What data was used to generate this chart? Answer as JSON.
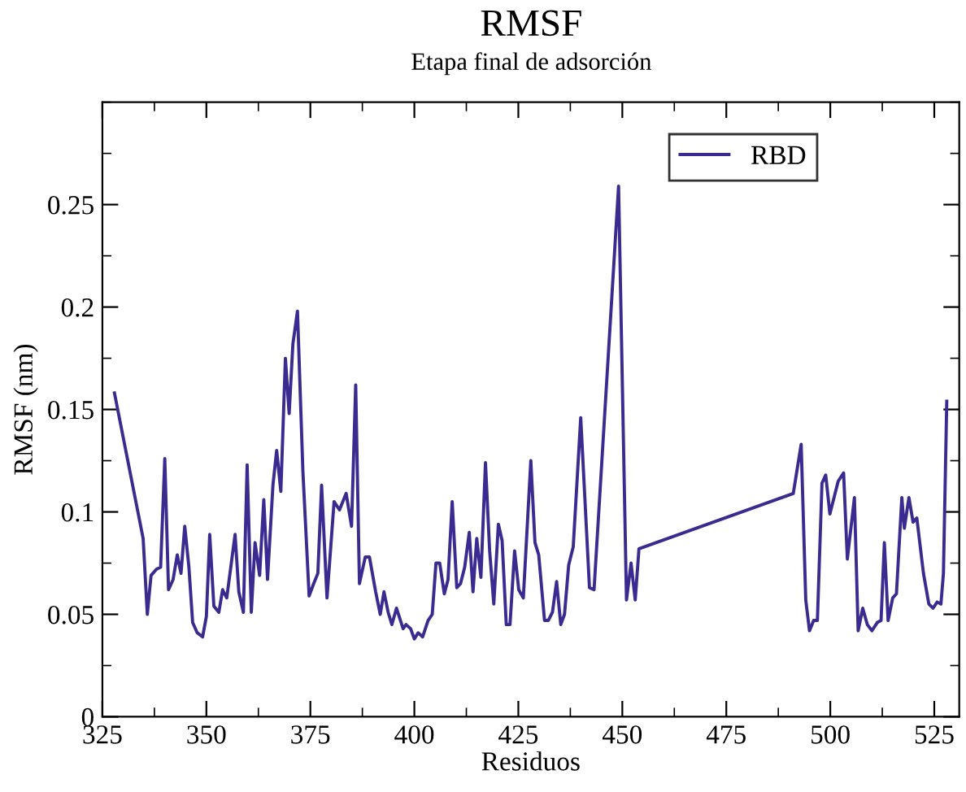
{
  "chart_data": {
    "type": "line",
    "title": "RMSF",
    "subtitle": "Etapa final de adsorción",
    "xlabel": "Residuos",
    "ylabel": "RMSF (nm)",
    "xlim": [
      325,
      531
    ],
    "xticks": [
      325,
      350,
      375,
      400,
      425,
      450,
      475,
      500,
      525
    ],
    "ylim": [
      0,
      0.3
    ],
    "yticks": [
      0,
      0.05,
      0.1,
      0.15,
      0.2,
      0.25
    ],
    "grid": false,
    "legend": "top right",
    "marker": "none",
    "line_style": "solid",
    "series": [
      {
        "name": "RBD",
        "color": "#3b2a8f",
        "x": [
          327.9,
          334.8,
          335.8,
          336.7,
          338,
          339,
          340,
          340.9,
          342,
          343,
          343.9,
          344.8,
          345.8,
          346.7,
          347.8,
          349.1,
          350,
          350.8,
          351.8,
          353,
          353.9,
          354.9,
          356.9,
          357.8,
          358.9,
          359.8,
          360.8,
          361.7,
          362.8,
          363.8,
          364.7,
          366,
          366.9,
          367.9,
          369,
          369.9,
          370.8,
          371.9,
          373.2,
          374.7,
          375.8,
          376.8,
          377.7,
          379,
          380.7,
          382,
          383.6,
          384.9,
          385.9,
          386.8,
          388.2,
          389.2,
          390.7,
          391.8,
          392.7,
          393.7,
          394.6,
          395.7,
          397.3,
          398,
          399.1,
          400,
          400.9,
          402,
          403.3,
          404.3,
          405.2,
          406.1,
          407.2,
          408.1,
          409.1,
          410.2,
          411.1,
          412.1,
          413.2,
          414.1,
          415,
          416,
          417.1,
          418.1,
          419.1,
          420.2,
          421.1,
          422.1,
          423,
          424.1,
          425.1,
          426.2,
          428,
          429,
          429.9,
          431.3,
          432.2,
          433.2,
          434.2,
          435.2,
          436.1,
          437.1,
          438.2,
          440,
          442.1,
          443.2,
          449.1,
          451,
          452.1,
          453.1,
          454,
          491.1,
          493,
          494.1,
          495,
          496,
          496.9,
          498,
          498.9,
          499.9,
          501.9,
          503.2,
          504.1,
          505.8,
          506.7,
          507.8,
          508.9,
          510,
          511.3,
          512.2,
          513,
          513.9,
          515,
          515.9,
          517.2,
          517.8,
          518.9,
          519.9,
          520.8,
          522.4,
          523.7,
          524.7,
          525.7,
          526.6,
          527.2,
          528
        ],
        "values": [
          0.158,
          0.087,
          0.05,
          0.069,
          0.072,
          0.073,
          0.126,
          0.062,
          0.067,
          0.079,
          0.07,
          0.093,
          0.073,
          0.046,
          0.041,
          0.039,
          0.049,
          0.089,
          0.054,
          0.051,
          0.062,
          0.058,
          0.089,
          0.061,
          0.051,
          0.123,
          0.051,
          0.085,
          0.069,
          0.106,
          0.067,
          0.113,
          0.13,
          0.11,
          0.175,
          0.148,
          0.182,
          0.198,
          0.12,
          0.059,
          0.065,
          0.07,
          0.113,
          0.058,
          0.105,
          0.101,
          0.109,
          0.093,
          0.162,
          0.065,
          0.078,
          0.078,
          0.061,
          0.05,
          0.061,
          0.051,
          0.045,
          0.053,
          0.043,
          0.045,
          0.043,
          0.038,
          0.041,
          0.039,
          0.047,
          0.05,
          0.075,
          0.075,
          0.06,
          0.067,
          0.105,
          0.063,
          0.065,
          0.073,
          0.09,
          0.061,
          0.087,
          0.068,
          0.124,
          0.081,
          0.055,
          0.094,
          0.086,
          0.045,
          0.045,
          0.081,
          0.062,
          0.058,
          0.125,
          0.085,
          0.079,
          0.047,
          0.047,
          0.051,
          0.066,
          0.045,
          0.05,
          0.074,
          0.083,
          0.146,
          0.063,
          0.062,
          0.259,
          0.057,
          0.075,
          0.057,
          0.082,
          0.109,
          0.133,
          0.057,
          0.042,
          0.047,
          0.047,
          0.114,
          0.118,
          0.099,
          0.115,
          0.119,
          0.077,
          0.107,
          0.042,
          0.053,
          0.045,
          0.042,
          0.046,
          0.047,
          0.085,
          0.047,
          0.058,
          0.06,
          0.107,
          0.092,
          0.107,
          0.095,
          0.097,
          0.07,
          0.055,
          0.053,
          0.056,
          0.055,
          0.07,
          0.154
        ]
      }
    ]
  }
}
